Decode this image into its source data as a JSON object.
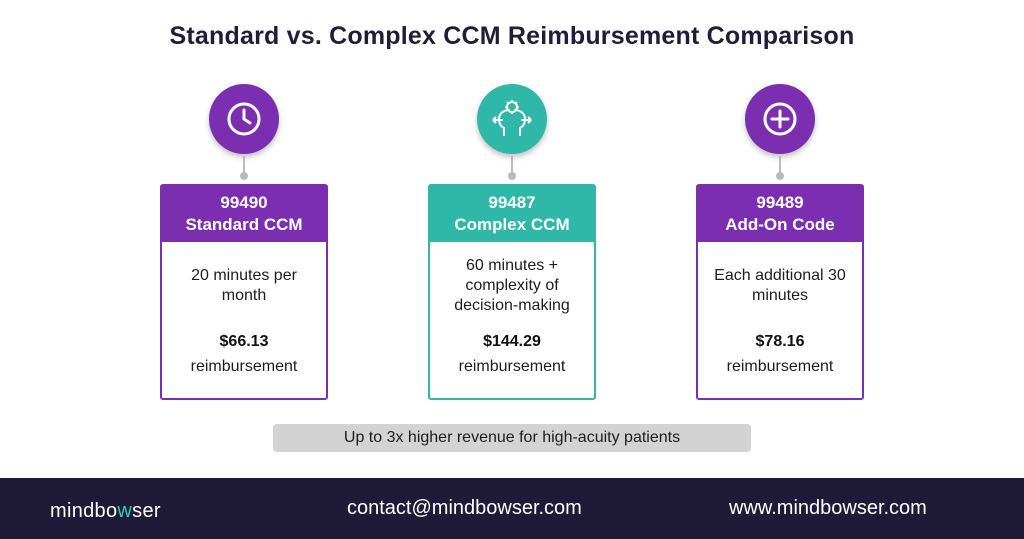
{
  "title": "Standard vs. Complex CCM Reimbursement Comparison",
  "cards": [
    {
      "icon": "clock-icon",
      "code": "99490",
      "name": "Standard CCM",
      "desc": "20 minutes per month",
      "price": "$66.13",
      "unit": "reimbursement",
      "color": "#7b2fb0"
    },
    {
      "icon": "head-gear-icon",
      "code": "99487",
      "name": "Complex CCM",
      "desc": "60 minutes + complexity of decision-making",
      "price": "$144.29",
      "unit": "reimbursement",
      "color": "#2fb8a8"
    },
    {
      "icon": "plus-circle-icon",
      "code": "99489",
      "name": "Add-On Code",
      "desc": "Each additional 30 minutes",
      "price": "$78.16",
      "unit": "reimbursement",
      "color": "#7b2fb0"
    }
  ],
  "banner": "Up to 3x higher revenue for high-acuity patients",
  "footer": {
    "brand_pre": "mindbo",
    "brand_w": "w",
    "brand_post": "ser",
    "email": "contact@mindbowser.com",
    "website": "www.mindbowser.com"
  }
}
